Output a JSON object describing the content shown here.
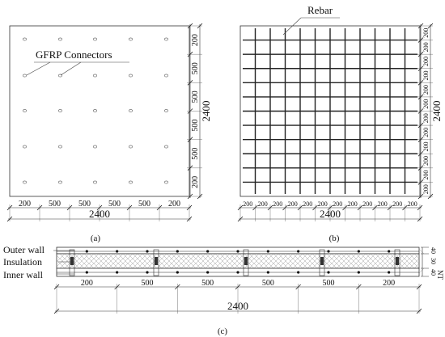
{
  "panel_a": {
    "connector_label": "GFRP Connectors",
    "caption": "(a)",
    "total_dim": "2400",
    "right_dims": [
      "200",
      "500",
      "500",
      "500",
      "500",
      "200"
    ],
    "bottom_dims": [
      "200",
      "500",
      "500",
      "500",
      "500",
      "200"
    ]
  },
  "panel_b": {
    "rebar_label": "Rebar",
    "caption": "(b)",
    "total_dim": "2400",
    "right_dims": [
      "200",
      "200",
      "200",
      "200",
      "200",
      "200",
      "200",
      "200",
      "200",
      "200",
      "200",
      "200"
    ],
    "bottom_dims": [
      "200",
      "200",
      "200",
      "200",
      "200",
      "200",
      "200",
      "200",
      "200",
      "200",
      "200",
      "200"
    ]
  },
  "panel_c": {
    "outer_wall": "Outer wall",
    "insulation": "Insulation",
    "inner_wall": "Inner wall",
    "caption": "(c)",
    "total_dim": "2400",
    "bottom_dims": [
      "200",
      "500",
      "500",
      "500",
      "500",
      "200"
    ],
    "thick_dims": [
      "40",
      "30",
      "40"
    ],
    "thick_prefix": "NT"
  }
}
